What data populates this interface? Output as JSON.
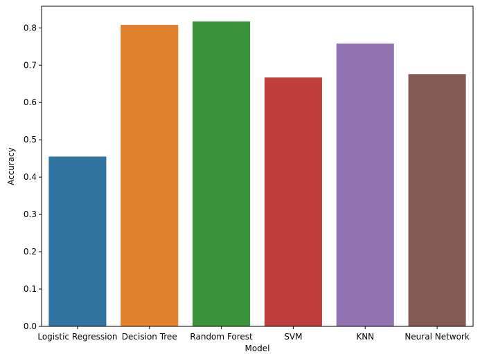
{
  "chart_data": {
    "type": "bar",
    "categories": [
      "Logistic Regression",
      "Decision Tree",
      "Random Forest",
      "SVM",
      "KNN",
      "Neural Network"
    ],
    "values": [
      0.455,
      0.808,
      0.817,
      0.667,
      0.758,
      0.676
    ],
    "colors": [
      "#3274a1",
      "#e1812c",
      "#3a923a",
      "#c03d3e",
      "#9372b2",
      "#845b53"
    ],
    "title": "",
    "xlabel": "Model",
    "ylabel": "Accuracy",
    "ylim": [
      0,
      0.858
    ],
    "yticks": [
      "0.0",
      "0.1",
      "0.2",
      "0.3",
      "0.4",
      "0.5",
      "0.6",
      "0.7",
      "0.8"
    ],
    "grid": false,
    "legend": "none"
  }
}
